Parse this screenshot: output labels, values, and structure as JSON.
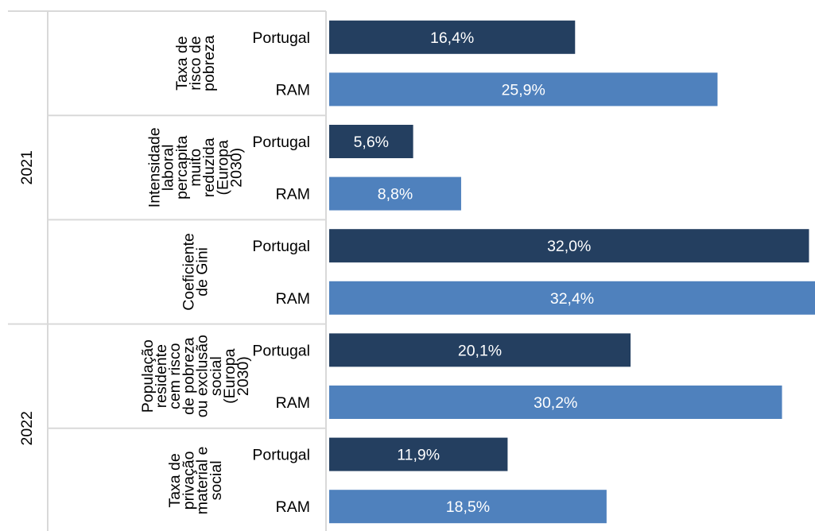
{
  "colors": {
    "portugal": "#243f60",
    "ram": "#4f81bd",
    "bar_label": "#ffffff",
    "separator": "#d9d9d9"
  },
  "chart_data": {
    "type": "bar",
    "orientation": "horizontal",
    "title": "",
    "xlabel": "",
    "ylabel": "",
    "xlim": [
      0,
      32.4
    ],
    "grid": false,
    "legend": "none",
    "series_names": [
      "Portugal",
      "RAM"
    ],
    "years": [
      {
        "label": "2021",
        "groups": [
          {
            "label": [
              "Taxa de",
              "risco de",
              "pobreza"
            ],
            "bars": [
              {
                "name": "Portugal",
                "value": 16.4,
                "label": "16,4%"
              },
              {
                "name": "RAM",
                "value": 25.9,
                "label": "25,9%"
              }
            ]
          },
          {
            "label": [
              "Intensidade",
              "laboral",
              "percapita",
              "muito",
              "reduzida",
              "(Europa",
              "2030)"
            ],
            "bars": [
              {
                "name": "Portugal",
                "value": 5.6,
                "label": "5,6%"
              },
              {
                "name": "RAM",
                "value": 8.8,
                "label": "8,8%"
              }
            ]
          },
          {
            "label": [
              "Coeficiente",
              "de Gini"
            ],
            "bars": [
              {
                "name": "Portugal",
                "value": 32.0,
                "label": "32,0%"
              },
              {
                "name": "RAM",
                "value": 32.4,
                "label": "32,4%"
              }
            ]
          }
        ]
      },
      {
        "label": "2022",
        "groups": [
          {
            "label": [
              "População",
              "residente",
              "cem risco",
              "de pobreza",
              "ou exclusão",
              "social",
              "(Europa",
              "2030)"
            ],
            "bars": [
              {
                "name": "Portugal",
                "value": 20.1,
                "label": "20,1%"
              },
              {
                "name": "RAM",
                "value": 30.2,
                "label": "30,2%"
              }
            ]
          },
          {
            "label": [
              "Taxa de",
              "privação",
              "material e",
              "social"
            ],
            "bars": [
              {
                "name": "Portugal",
                "value": 11.9,
                "label": "11,9%"
              },
              {
                "name": "RAM",
                "value": 18.5,
                "label": "18,5%"
              }
            ]
          }
        ]
      }
    ]
  }
}
